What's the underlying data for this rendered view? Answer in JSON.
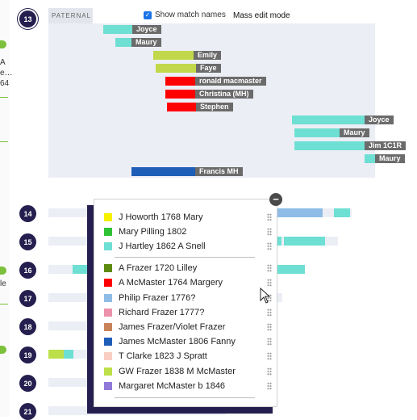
{
  "header": {
    "paternal_label": "PATERNAL",
    "show_match_names_label": "Show match names",
    "show_match_names_checked": true,
    "mass_edit_label": "Mass edit mode"
  },
  "edge_text": [
    "A",
    "e…",
    "64",
    "le"
  ],
  "chromosomes": [
    "13",
    "14",
    "15",
    "16",
    "17",
    "18",
    "19",
    "20",
    "21"
  ],
  "matches": [
    {
      "name": "Joyce",
      "color": "#6edfd3"
    },
    {
      "name": "Maury",
      "color": "#6edfd3"
    },
    {
      "name": "Emily",
      "color": "#c2d84a"
    },
    {
      "name": "Faye",
      "color": "#c2d84a"
    },
    {
      "name": "ronald macmaster",
      "color": "#ff0000"
    },
    {
      "name": "Christina (MH)",
      "color": "#ff0000"
    },
    {
      "name": "Stephen",
      "color": "#ff0000"
    },
    {
      "name": "Joyce",
      "color": "#6edfd3"
    },
    {
      "name": "Maury",
      "color": "#6edfd3"
    },
    {
      "name": "Jim 1C1R",
      "color": "#6edfd3"
    },
    {
      "name": "Maury",
      "color": "#6edfd3"
    },
    {
      "name": "Francis MH",
      "color": "#1e5eb8"
    }
  ],
  "legend": {
    "group1": [
      {
        "label": "J Howorth 1768 Mary",
        "color": "#f7f000"
      },
      {
        "label": "Mary Pilling 1802",
        "color": "#2fc236"
      },
      {
        "label": "J Hartley 1862 A Snell",
        "color": "#6edfd3"
      }
    ],
    "group2": [
      {
        "label": "A Frazer 1720 Lilley",
        "color": "#5d8a10"
      },
      {
        "label": "A McMaster 1764 Margery",
        "color": "#ff0000"
      },
      {
        "label": "Philip Frazer 1776?",
        "color": "#8fbce6"
      },
      {
        "label": "Richard Frazer 1777?",
        "color": "#ec92aa"
      },
      {
        "label": "James Frazer/Violet Frazer",
        "color": "#c9835a"
      },
      {
        "label": "James McMaster 1806 Fanny",
        "color": "#1e5eb8"
      },
      {
        "label": "T Clarke 1823 J Spratt",
        "color": "#f9cfc3"
      },
      {
        "label": "GW Frazer 1838 M McMaster",
        "color": "#bde04a"
      },
      {
        "label": "Margaret McMaster b 1846",
        "color": "#8f79d9"
      }
    ]
  },
  "popup": {
    "close_icon": "minus-icon"
  }
}
